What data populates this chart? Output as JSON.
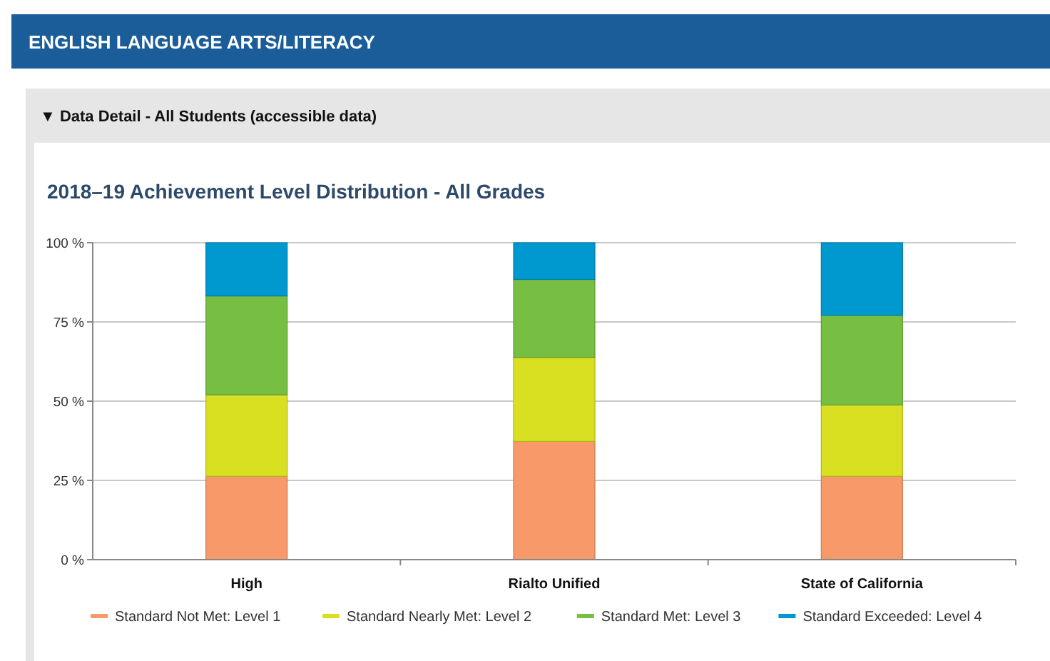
{
  "chart_data": {
    "type": "bar",
    "title": "2018–19 Achievement Level Distribution - All Grades",
    "annotations": [
      "ENGLISH LANGUAGE ARTS/LITERACY",
      "▼ Data Detail - All Students (accessible data)"
    ],
    "categories": [
      "High",
      "Rialto Unified",
      "State of California"
    ],
    "stacked": true,
    "series": [
      {
        "name": "Standard Not Met: Level 1",
        "color": "#f79969",
        "values": [
          26.3,
          37.3,
          26.3
        ]
      },
      {
        "name": "Standard Nearly Met: Level 2",
        "color": "#d9e021",
        "values": [
          25.7,
          26.5,
          22.5
        ]
      },
      {
        "name": "Standard Met: Level 3",
        "color": "#77bf43",
        "values": [
          31.2,
          24.6,
          28.3
        ]
      },
      {
        "name": "Standard Exceeded: Level 4",
        "color": "#0099cf",
        "values": [
          16.8,
          11.6,
          22.9
        ]
      }
    ],
    "ylim": [
      0,
      100
    ],
    "yticks": [
      {
        "value": 0,
        "label": "0 %"
      },
      {
        "value": 25,
        "label": "25 %"
      },
      {
        "value": 50,
        "label": "50 %"
      },
      {
        "value": 75,
        "label": "75 %"
      },
      {
        "value": 100,
        "label": "100 %"
      }
    ],
    "grid": "y",
    "legend": "bottom"
  }
}
